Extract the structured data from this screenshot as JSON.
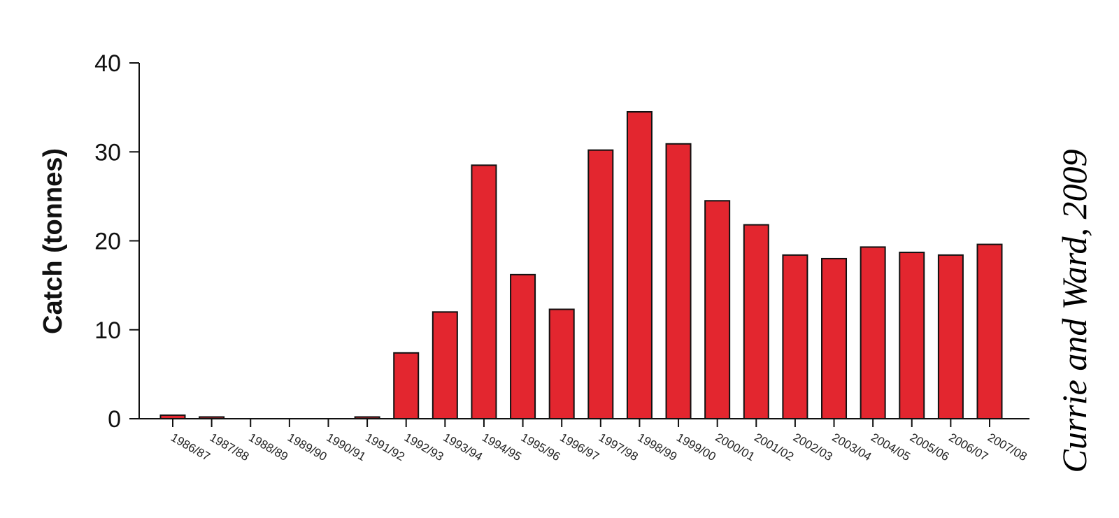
{
  "chart_data": {
    "type": "bar",
    "categories": [
      "1986/87",
      "1987/88",
      "1988/89",
      "1989/90",
      "1990/91",
      "1991/92",
      "1992/93",
      "1993/94",
      "1994/95",
      "1995/96",
      "1996/97",
      "1997/98",
      "1998/99",
      "1999/00",
      "2000/01",
      "2001/02",
      "2002/03",
      "2003/04",
      "2004/05",
      "2005/06",
      "2006/07",
      "2007/08"
    ],
    "values": [
      0.4,
      0.2,
      0,
      0,
      0,
      0.2,
      7.4,
      12.0,
      28.5,
      16.2,
      12.3,
      30.2,
      34.5,
      30.9,
      24.5,
      21.8,
      18.4,
      18.0,
      19.3,
      18.7,
      18.4,
      19.6
    ],
    "title": "",
    "xlabel": "",
    "ylabel": "Catch (tonnes)",
    "ylim": [
      0,
      40
    ],
    "yticks": [
      "0",
      "10",
      "20",
      "30",
      "40"
    ],
    "grid": false,
    "bar_color": "#e3262f",
    "bar_edge_color": "#111111"
  },
  "credit": "Currie and Ward, 2009"
}
